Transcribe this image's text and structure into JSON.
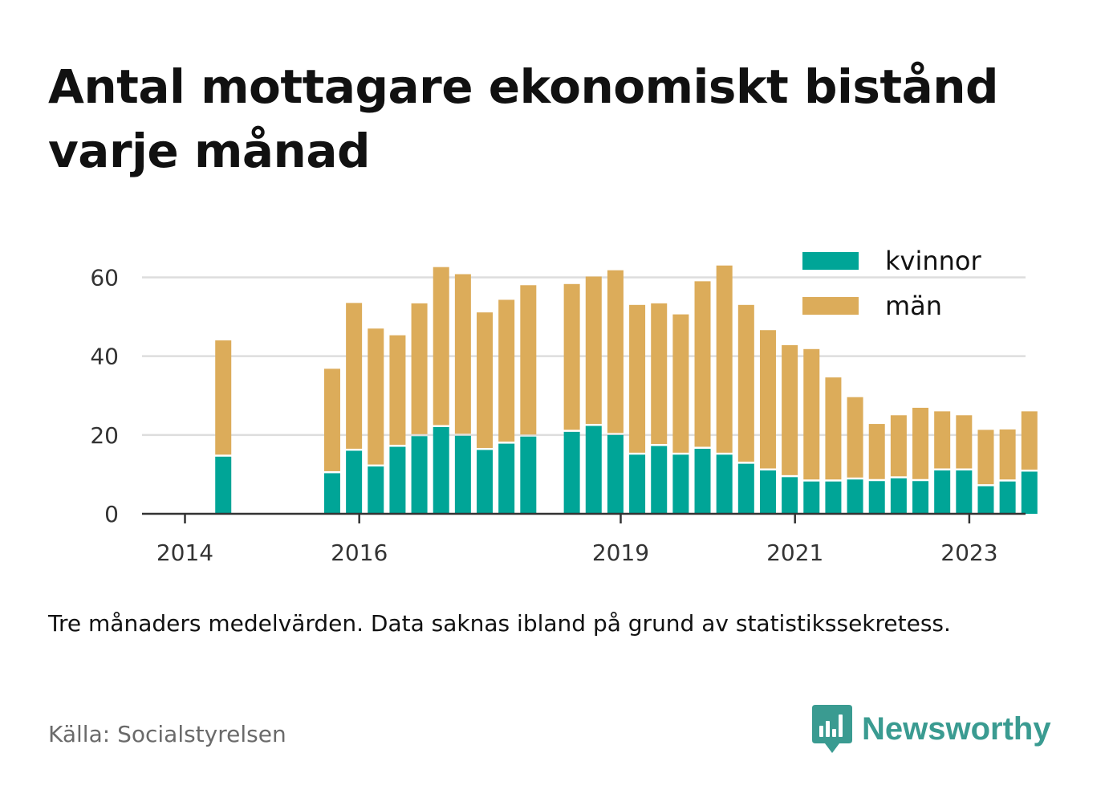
{
  "title": "Antal mottagare ekonomiskt bistånd varje månad",
  "note": "Tre månaders medelvärden. Data saknas ibland på grund av statistikssekretess.",
  "source": "Källa: Socialstyrelsen",
  "brand": "Newsworthy",
  "colors": {
    "kvinnor": "#00a597",
    "man": "#dcac5a",
    "brand": "#3a9b91",
    "grid": "#dddddd",
    "axis": "#333333"
  },
  "chart_data": {
    "type": "bar",
    "stacked": true,
    "x_unit": "quarter",
    "x": [
      "2014-Q2",
      "2015-Q3",
      "2015-Q4",
      "2016-Q1",
      "2016-Q2",
      "2016-Q3",
      "2016-Q4",
      "2017-Q1",
      "2017-Q2",
      "2017-Q3",
      "2017-Q4",
      "2018-Q2",
      "2018-Q3",
      "2018-Q4",
      "2019-Q1",
      "2019-Q2",
      "2019-Q3",
      "2019-Q4",
      "2020-Q1",
      "2020-Q2",
      "2020-Q3",
      "2020-Q4",
      "2021-Q1",
      "2021-Q2",
      "2021-Q3",
      "2021-Q4",
      "2022-Q1",
      "2022-Q2",
      "2022-Q3",
      "2022-Q4",
      "2023-Q1",
      "2023-Q2",
      "2023-Q3"
    ],
    "series": [
      {
        "name": "kvinnor",
        "values": [
          14.5,
          10.3,
          16.0,
          12.0,
          17.0,
          19.7,
          22.0,
          19.8,
          16.2,
          17.8,
          19.6,
          20.8,
          22.3,
          20.0,
          15.0,
          17.2,
          15.0,
          16.5,
          15.0,
          12.7,
          11.0,
          9.3,
          8.2,
          8.2,
          8.7,
          8.3,
          9.0,
          8.3,
          11.0,
          11.0,
          7.0,
          8.2,
          10.7
        ]
      },
      {
        "name": "män",
        "values": [
          29.5,
          26.5,
          37.5,
          35.0,
          28.3,
          33.7,
          40.6,
          41.0,
          34.9,
          36.5,
          38.4,
          37.5,
          37.9,
          41.8,
          38.0,
          36.2,
          35.6,
          42.5,
          48.0,
          40.3,
          35.6,
          33.5,
          33.6,
          26.4,
          20.9,
          14.5,
          16.0,
          18.6,
          15.0,
          14.0,
          14.3,
          13.2,
          15.3
        ]
      }
    ],
    "x_ticks": [
      "2014",
      "2016",
      "2019",
      "2021",
      "2023"
    ],
    "y_ticks": [
      0,
      20,
      40,
      60
    ],
    "ylim": [
      0,
      66
    ],
    "grid": true,
    "legend_position": "top-right"
  }
}
